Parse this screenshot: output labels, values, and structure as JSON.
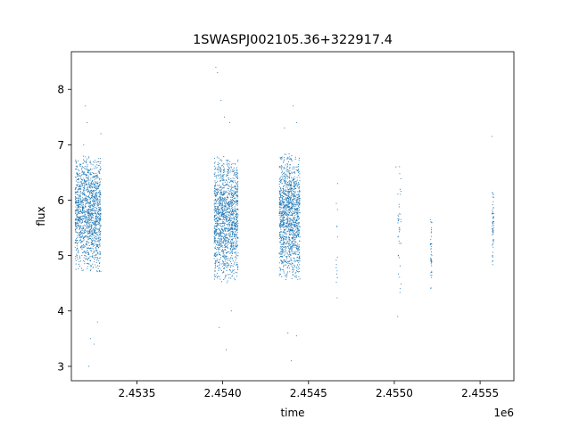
{
  "chart_data": {
    "type": "scatter",
    "title": "1SWASPJ002105.36+322917.4",
    "xlabel": "time",
    "ylabel": "flux",
    "x_offset_label": "1e6",
    "xlim": [
      2.453118,
      2.455697
    ],
    "ylim": [
      2.74,
      8.68
    ],
    "x_ticks": [
      2.4535,
      2.454,
      2.4545,
      2.455,
      2.4555
    ],
    "x_tick_labels": [
      "2.4535",
      "2.4540",
      "2.4545",
      "2.4550",
      "2.4555"
    ],
    "y_ticks": [
      3,
      4,
      5,
      6,
      7,
      8
    ],
    "y_tick_labels": [
      "3",
      "4",
      "5",
      "6",
      "7",
      "8"
    ],
    "grid": false,
    "marker_color": "#1f77b4",
    "series": [
      {
        "clusters": [
          {
            "x_range": [
              2.45314,
              2.45329
            ],
            "y_center": 5.75,
            "y_spread": 0.55,
            "n": 1400
          },
          {
            "x_range": [
              2.45395,
              2.45409
            ],
            "y_center": 5.65,
            "y_spread": 0.6,
            "n": 1400
          },
          {
            "x_range": [
              2.45433,
              2.45445
            ],
            "y_center": 5.7,
            "y_spread": 0.6,
            "n": 1300
          },
          {
            "x_range": [
              2.45466,
              2.45467
            ],
            "y_center": 5.2,
            "y_spread": 0.6,
            "n": 14
          },
          {
            "x_range": [
              2.45502,
              2.45504
            ],
            "y_center": 5.3,
            "y_spread": 0.7,
            "n": 40
          },
          {
            "x_range": [
              2.45521,
              2.45522
            ],
            "y_center": 5.0,
            "y_spread": 0.35,
            "n": 40
          },
          {
            "x_range": [
              2.45557,
              2.45558
            ],
            "y_center": 5.5,
            "y_spread": 0.35,
            "n": 60
          }
        ],
        "outliers": [
          [
            2.4532,
            7.7
          ],
          [
            2.45321,
            7.4
          ],
          [
            2.45322,
            3.0
          ],
          [
            2.45323,
            3.5
          ],
          [
            2.45325,
            3.4
          ],
          [
            2.45327,
            3.8
          ],
          [
            2.45329,
            7.2
          ],
          [
            2.45319,
            7.0
          ],
          [
            2.45396,
            8.4
          ],
          [
            2.45397,
            8.3
          ],
          [
            2.45399,
            7.8
          ],
          [
            2.45401,
            7.5
          ],
          [
            2.45404,
            7.4
          ],
          [
            2.45398,
            3.7
          ],
          [
            2.45402,
            3.3
          ],
          [
            2.45405,
            4.0
          ],
          [
            2.45436,
            7.3
          ],
          [
            2.45441,
            7.7
          ],
          [
            2.45443,
            7.4
          ],
          [
            2.4544,
            3.1
          ],
          [
            2.45438,
            3.6
          ],
          [
            2.45443,
            3.55
          ],
          [
            2.45501,
            6.6
          ],
          [
            2.45502,
            3.9
          ],
          [
            2.45521,
            5.65
          ],
          [
            2.45557,
            7.15
          ],
          [
            2.45467,
            6.3
          ]
        ]
      }
    ]
  }
}
